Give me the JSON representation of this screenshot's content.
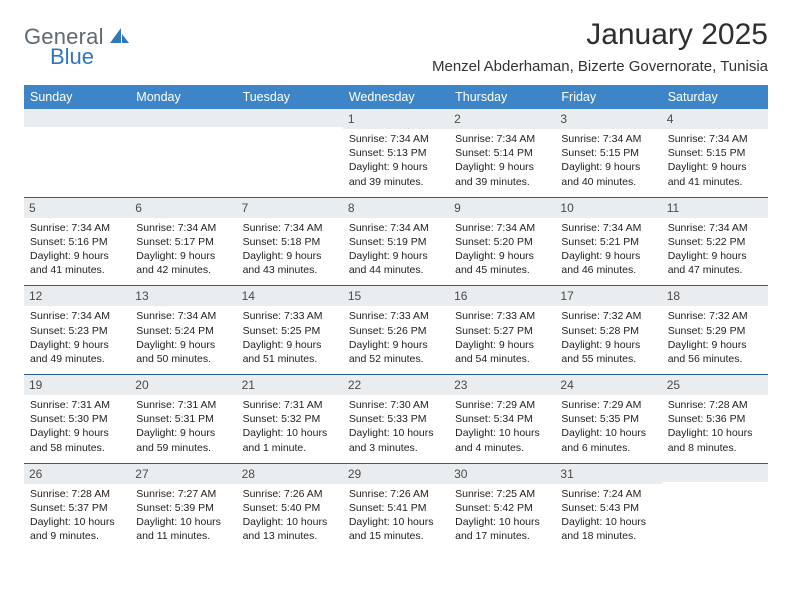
{
  "logo": {
    "text1": "General",
    "text2": "Blue"
  },
  "title": "January 2025",
  "location": "Menzel Abderhaman, Bizerte Governorate, Tunisia",
  "colors": {
    "header_bg": "#3d85c6",
    "header_text": "#ffffff",
    "daynum_bg": "#e9edf0",
    "row_border": "#2c5f8d",
    "logo_gray": "#5f6a72",
    "logo_blue": "#2f78b9"
  },
  "weekdays": [
    "Sunday",
    "Monday",
    "Tuesday",
    "Wednesday",
    "Thursday",
    "Friday",
    "Saturday"
  ],
  "cells": [
    {
      "day": "",
      "sunrise": "",
      "sunset": "",
      "daylight": ""
    },
    {
      "day": "",
      "sunrise": "",
      "sunset": "",
      "daylight": ""
    },
    {
      "day": "",
      "sunrise": "",
      "sunset": "",
      "daylight": ""
    },
    {
      "day": "1",
      "sunrise": "Sunrise: 7:34 AM",
      "sunset": "Sunset: 5:13 PM",
      "daylight": "Daylight: 9 hours and 39 minutes."
    },
    {
      "day": "2",
      "sunrise": "Sunrise: 7:34 AM",
      "sunset": "Sunset: 5:14 PM",
      "daylight": "Daylight: 9 hours and 39 minutes."
    },
    {
      "day": "3",
      "sunrise": "Sunrise: 7:34 AM",
      "sunset": "Sunset: 5:15 PM",
      "daylight": "Daylight: 9 hours and 40 minutes."
    },
    {
      "day": "4",
      "sunrise": "Sunrise: 7:34 AM",
      "sunset": "Sunset: 5:15 PM",
      "daylight": "Daylight: 9 hours and 41 minutes."
    },
    {
      "day": "5",
      "sunrise": "Sunrise: 7:34 AM",
      "sunset": "Sunset: 5:16 PM",
      "daylight": "Daylight: 9 hours and 41 minutes."
    },
    {
      "day": "6",
      "sunrise": "Sunrise: 7:34 AM",
      "sunset": "Sunset: 5:17 PM",
      "daylight": "Daylight: 9 hours and 42 minutes."
    },
    {
      "day": "7",
      "sunrise": "Sunrise: 7:34 AM",
      "sunset": "Sunset: 5:18 PM",
      "daylight": "Daylight: 9 hours and 43 minutes."
    },
    {
      "day": "8",
      "sunrise": "Sunrise: 7:34 AM",
      "sunset": "Sunset: 5:19 PM",
      "daylight": "Daylight: 9 hours and 44 minutes."
    },
    {
      "day": "9",
      "sunrise": "Sunrise: 7:34 AM",
      "sunset": "Sunset: 5:20 PM",
      "daylight": "Daylight: 9 hours and 45 minutes."
    },
    {
      "day": "10",
      "sunrise": "Sunrise: 7:34 AM",
      "sunset": "Sunset: 5:21 PM",
      "daylight": "Daylight: 9 hours and 46 minutes."
    },
    {
      "day": "11",
      "sunrise": "Sunrise: 7:34 AM",
      "sunset": "Sunset: 5:22 PM",
      "daylight": "Daylight: 9 hours and 47 minutes."
    },
    {
      "day": "12",
      "sunrise": "Sunrise: 7:34 AM",
      "sunset": "Sunset: 5:23 PM",
      "daylight": "Daylight: 9 hours and 49 minutes."
    },
    {
      "day": "13",
      "sunrise": "Sunrise: 7:34 AM",
      "sunset": "Sunset: 5:24 PM",
      "daylight": "Daylight: 9 hours and 50 minutes."
    },
    {
      "day": "14",
      "sunrise": "Sunrise: 7:33 AM",
      "sunset": "Sunset: 5:25 PM",
      "daylight": "Daylight: 9 hours and 51 minutes."
    },
    {
      "day": "15",
      "sunrise": "Sunrise: 7:33 AM",
      "sunset": "Sunset: 5:26 PM",
      "daylight": "Daylight: 9 hours and 52 minutes."
    },
    {
      "day": "16",
      "sunrise": "Sunrise: 7:33 AM",
      "sunset": "Sunset: 5:27 PM",
      "daylight": "Daylight: 9 hours and 54 minutes."
    },
    {
      "day": "17",
      "sunrise": "Sunrise: 7:32 AM",
      "sunset": "Sunset: 5:28 PM",
      "daylight": "Daylight: 9 hours and 55 minutes."
    },
    {
      "day": "18",
      "sunrise": "Sunrise: 7:32 AM",
      "sunset": "Sunset: 5:29 PM",
      "daylight": "Daylight: 9 hours and 56 minutes."
    },
    {
      "day": "19",
      "sunrise": "Sunrise: 7:31 AM",
      "sunset": "Sunset: 5:30 PM",
      "daylight": "Daylight: 9 hours and 58 minutes."
    },
    {
      "day": "20",
      "sunrise": "Sunrise: 7:31 AM",
      "sunset": "Sunset: 5:31 PM",
      "daylight": "Daylight: 9 hours and 59 minutes."
    },
    {
      "day": "21",
      "sunrise": "Sunrise: 7:31 AM",
      "sunset": "Sunset: 5:32 PM",
      "daylight": "Daylight: 10 hours and 1 minute."
    },
    {
      "day": "22",
      "sunrise": "Sunrise: 7:30 AM",
      "sunset": "Sunset: 5:33 PM",
      "daylight": "Daylight: 10 hours and 3 minutes."
    },
    {
      "day": "23",
      "sunrise": "Sunrise: 7:29 AM",
      "sunset": "Sunset: 5:34 PM",
      "daylight": "Daylight: 10 hours and 4 minutes."
    },
    {
      "day": "24",
      "sunrise": "Sunrise: 7:29 AM",
      "sunset": "Sunset: 5:35 PM",
      "daylight": "Daylight: 10 hours and 6 minutes."
    },
    {
      "day": "25",
      "sunrise": "Sunrise: 7:28 AM",
      "sunset": "Sunset: 5:36 PM",
      "daylight": "Daylight: 10 hours and 8 minutes."
    },
    {
      "day": "26",
      "sunrise": "Sunrise: 7:28 AM",
      "sunset": "Sunset: 5:37 PM",
      "daylight": "Daylight: 10 hours and 9 minutes."
    },
    {
      "day": "27",
      "sunrise": "Sunrise: 7:27 AM",
      "sunset": "Sunset: 5:39 PM",
      "daylight": "Daylight: 10 hours and 11 minutes."
    },
    {
      "day": "28",
      "sunrise": "Sunrise: 7:26 AM",
      "sunset": "Sunset: 5:40 PM",
      "daylight": "Daylight: 10 hours and 13 minutes."
    },
    {
      "day": "29",
      "sunrise": "Sunrise: 7:26 AM",
      "sunset": "Sunset: 5:41 PM",
      "daylight": "Daylight: 10 hours and 15 minutes."
    },
    {
      "day": "30",
      "sunrise": "Sunrise: 7:25 AM",
      "sunset": "Sunset: 5:42 PM",
      "daylight": "Daylight: 10 hours and 17 minutes."
    },
    {
      "day": "31",
      "sunrise": "Sunrise: 7:24 AM",
      "sunset": "Sunset: 5:43 PM",
      "daylight": "Daylight: 10 hours and 18 minutes."
    },
    {
      "day": "",
      "sunrise": "",
      "sunset": "",
      "daylight": ""
    }
  ]
}
